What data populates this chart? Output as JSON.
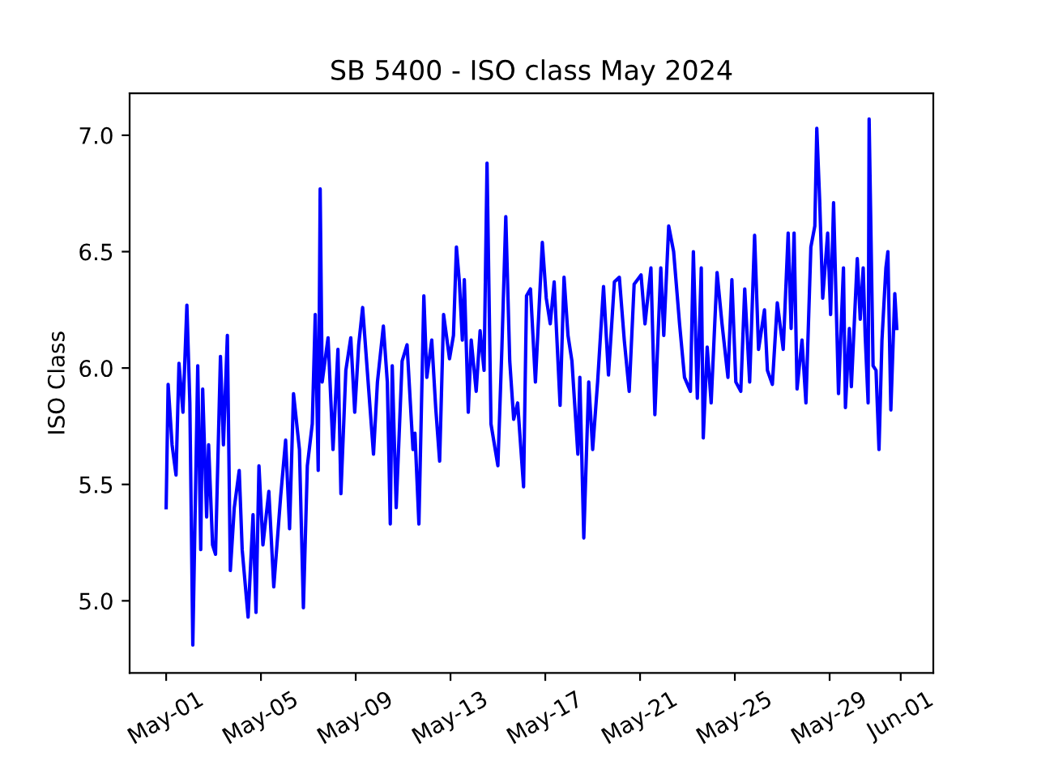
{
  "chart_data": {
    "type": "line",
    "title": "SB 5400 - ISO class May 2024",
    "ylabel": "ISO Class",
    "xlim": [
      "2024-04-29T11:00",
      "2024-06-02T09:00"
    ],
    "ylim": [
      4.69,
      7.18
    ],
    "xticks": [
      {
        "value": "2024-05-01",
        "label": "May-01"
      },
      {
        "value": "2024-05-05",
        "label": "May-05"
      },
      {
        "value": "2024-05-09",
        "label": "May-09"
      },
      {
        "value": "2024-05-13",
        "label": "May-13"
      },
      {
        "value": "2024-05-17",
        "label": "May-17"
      },
      {
        "value": "2024-05-21",
        "label": "May-21"
      },
      {
        "value": "2024-05-25",
        "label": "May-25"
      },
      {
        "value": "2024-05-29",
        "label": "May-29"
      },
      {
        "value": "2024-06-01",
        "label": "Jun-01"
      }
    ],
    "yticks": [
      {
        "value": 5,
        "label": "5.0"
      },
      5.5,
      {
        "value": 6,
        "label": "6.0"
      },
      6.5,
      {
        "value": 7,
        "label": "7.0"
      }
    ],
    "grid": false,
    "legend": false,
    "marker": "none",
    "line_style": "solid",
    "x": [
      "2024-05-01T00:00",
      "2024-05-01T02:00",
      "2024-05-01T06:00",
      "2024-05-01T10:00",
      "2024-05-01T13:00",
      "2024-05-01T17:00",
      "2024-05-01T21:00",
      "2024-05-02T00:00",
      "2024-05-02T03:00",
      "2024-05-02T08:00",
      "2024-05-02T11:00",
      "2024-05-02T13:00",
      "2024-05-02T17:00",
      "2024-05-02T19:00",
      "2024-05-02T23:00",
      "2024-05-03T02:00",
      "2024-05-03T07:00",
      "2024-05-03T10:00",
      "2024-05-03T14:00",
      "2024-05-03T17:00",
      "2024-05-03T21:00",
      "2024-05-04T02:00",
      "2024-05-04T05:00",
      "2024-05-04T11:00",
      "2024-05-04T16:00",
      "2024-05-04T19:00",
      "2024-05-04T22:00",
      "2024-05-05T02:00",
      "2024-05-05T08:00",
      "2024-05-05T13:00",
      "2024-05-05T20:00",
      "2024-05-06T01:00",
      "2024-05-06T05:00",
      "2024-05-06T09:00",
      "2024-05-06T15:00",
      "2024-05-06T19:00",
      "2024-05-06T23:00",
      "2024-05-07T04:00",
      "2024-05-07T07:00",
      "2024-05-07T10:00",
      "2024-05-07T12:00",
      "2024-05-07T14:00",
      "2024-05-07T20:00",
      "2024-05-08T01:00",
      "2024-05-08T06:00",
      "2024-05-08T09:00",
      "2024-05-08T14:00",
      "2024-05-08T19:00",
      "2024-05-08T23:00",
      "2024-05-09T03:00",
      "2024-05-09T07:00",
      "2024-05-09T11:00",
      "2024-05-09T18:00",
      "2024-05-09T22:00",
      "2024-05-10T04:00",
      "2024-05-10T08:00",
      "2024-05-10T11:00",
      "2024-05-10T13:00",
      "2024-05-10T17:00",
      "2024-05-10T23:00",
      "2024-05-11T04:00",
      "2024-05-11T10:00",
      "2024-05-11T12:00",
      "2024-05-11T16:00",
      "2024-05-11T21:00",
      "2024-05-12T00:00",
      "2024-05-12T05:00",
      "2024-05-12T09:00",
      "2024-05-12T13:00",
      "2024-05-12T17:00",
      "2024-05-12T23:00",
      "2024-05-13T03:00",
      "2024-05-13T06:00",
      "2024-05-13T09:00",
      "2024-05-13T12:00",
      "2024-05-13T14:00",
      "2024-05-13T18:00",
      "2024-05-13T21:00",
      "2024-05-14T02:00",
      "2024-05-14T06:00",
      "2024-05-14T10:00",
      "2024-05-14T13:00",
      "2024-05-14T17:00",
      "2024-05-15T00:00",
      "2024-05-15T04:00",
      "2024-05-15T08:00",
      "2024-05-15T12:00",
      "2024-05-15T16:00",
      "2024-05-15T20:00",
      "2024-05-16T02:00",
      "2024-05-16T05:00",
      "2024-05-16T09:00",
      "2024-05-16T14:00",
      "2024-05-16T21:00",
      "2024-05-17T01:00",
      "2024-05-17T05:00",
      "2024-05-17T09:00",
      "2024-05-17T15:00",
      "2024-05-17T19:00",
      "2024-05-17T23:00",
      "2024-05-18T03:00",
      "2024-05-18T09:00",
      "2024-05-18T11:00",
      "2024-05-18T15:00",
      "2024-05-18T20:00",
      "2024-05-19T00:00",
      "2024-05-19T05:00",
      "2024-05-19T11:00",
      "2024-05-19T16:00",
      "2024-05-19T22:00",
      "2024-05-20T03:00",
      "2024-05-20T08:00",
      "2024-05-20T13:00",
      "2024-05-20T18:00",
      "2024-05-21T01:00",
      "2024-05-21T05:00",
      "2024-05-21T11:00",
      "2024-05-21T15:00",
      "2024-05-21T21:00",
      "2024-05-22T00:00",
      "2024-05-22T05:00",
      "2024-05-22T10:00",
      "2024-05-22T16:00",
      "2024-05-22T21:00",
      "2024-05-23T03:00",
      "2024-05-23T06:00",
      "2024-05-23T10:00",
      "2024-05-23T14:00",
      "2024-05-23T16:00",
      "2024-05-23T20:00",
      "2024-05-24T00:00",
      "2024-05-24T06:00",
      "2024-05-24T11:00",
      "2024-05-24T17:00",
      "2024-05-24T21:00",
      "2024-05-25T01:00",
      "2024-05-25T06:00",
      "2024-05-25T10:00",
      "2024-05-25T15:00",
      "2024-05-25T20:00",
      "2024-05-26T00:00",
      "2024-05-26T06:00",
      "2024-05-26T09:00",
      "2024-05-26T14:00",
      "2024-05-26T19:00",
      "2024-05-27T01:00",
      "2024-05-27T06:00",
      "2024-05-27T09:00",
      "2024-05-27T12:00",
      "2024-05-27T15:00",
      "2024-05-27T20:00",
      "2024-05-28T00:00",
      "2024-05-28T05:00",
      "2024-05-28T09:00",
      "2024-05-28T11:00",
      "2024-05-28T14:00",
      "2024-05-28T17:00",
      "2024-05-28T22:00",
      "2024-05-29T01:00",
      "2024-05-29T04:00",
      "2024-05-29T09:00",
      "2024-05-29T14:00",
      "2024-05-29T16:00",
      "2024-05-29T20:00",
      "2024-05-29T22:00",
      "2024-05-30T04:00",
      "2024-05-30T07:00",
      "2024-05-30T10:00",
      "2024-05-30T12:00",
      "2024-05-30T15:00",
      "2024-05-30T16:00",
      "2024-05-30T20:00",
      "2024-05-30T23:00",
      "2024-05-31T02:00",
      "2024-05-31T05:00",
      "2024-05-31T09:00",
      "2024-05-31T11:00",
      "2024-05-31T14:00",
      "2024-05-31T18:00",
      "2024-05-31T20:00"
    ],
    "series": [
      {
        "color": "#0000ff",
        "values": [
          5.4,
          5.93,
          5.67,
          5.54,
          6.02,
          5.81,
          6.27,
          5.85,
          4.81,
          6.01,
          5.22,
          5.91,
          5.36,
          5.67,
          5.24,
          5.2,
          6.05,
          5.67,
          6.14,
          5.13,
          5.4,
          5.56,
          5.22,
          4.93,
          5.37,
          4.95,
          5.58,
          5.24,
          5.47,
          5.06,
          5.45,
          5.69,
          5.31,
          5.89,
          5.65,
          4.97,
          5.58,
          5.76,
          6.23,
          5.56,
          6.77,
          5.94,
          6.13,
          5.65,
          6.08,
          5.46,
          5.99,
          6.13,
          5.81,
          6.1,
          6.26,
          6.03,
          5.63,
          5.94,
          6.18,
          5.94,
          5.33,
          6.01,
          5.4,
          6.03,
          6.1,
          5.65,
          5.72,
          5.33,
          6.31,
          5.96,
          6.12,
          5.83,
          5.6,
          6.23,
          6.04,
          6.14,
          6.52,
          6.37,
          6.12,
          6.38,
          5.81,
          6.12,
          5.9,
          6.16,
          5.99,
          6.88,
          5.76,
          5.58,
          6.08,
          6.65,
          6.03,
          5.78,
          5.85,
          5.49,
          6.31,
          6.34,
          5.94,
          6.54,
          6.3,
          6.19,
          6.37,
          5.84,
          6.39,
          6.14,
          6.03,
          5.63,
          5.96,
          5.27,
          5.94,
          5.65,
          5.94,
          6.35,
          5.97,
          6.37,
          6.39,
          6.12,
          5.9,
          6.36,
          6.4,
          6.19,
          6.43,
          5.8,
          6.43,
          6.14,
          6.61,
          6.5,
          6.19,
          5.96,
          5.9,
          6.5,
          5.87,
          6.43,
          5.7,
          6.09,
          5.85,
          6.41,
          6.19,
          5.96,
          6.38,
          5.94,
          5.9,
          6.34,
          5.94,
          6.57,
          6.08,
          6.25,
          5.99,
          5.93,
          6.28,
          6.08,
          6.58,
          6.17,
          6.58,
          5.91,
          6.12,
          5.85,
          6.52,
          6.61,
          7.03,
          6.71,
          6.3,
          6.58,
          6.23,
          6.71,
          5.89,
          6.43,
          5.83,
          6.17,
          5.92,
          6.47,
          6.21,
          6.43,
          6.14,
          5.85,
          7.07,
          6.01,
          5.99,
          5.65,
          6.12,
          6.43,
          6.5,
          5.82,
          6.32,
          6.17
        ]
      }
    ]
  }
}
